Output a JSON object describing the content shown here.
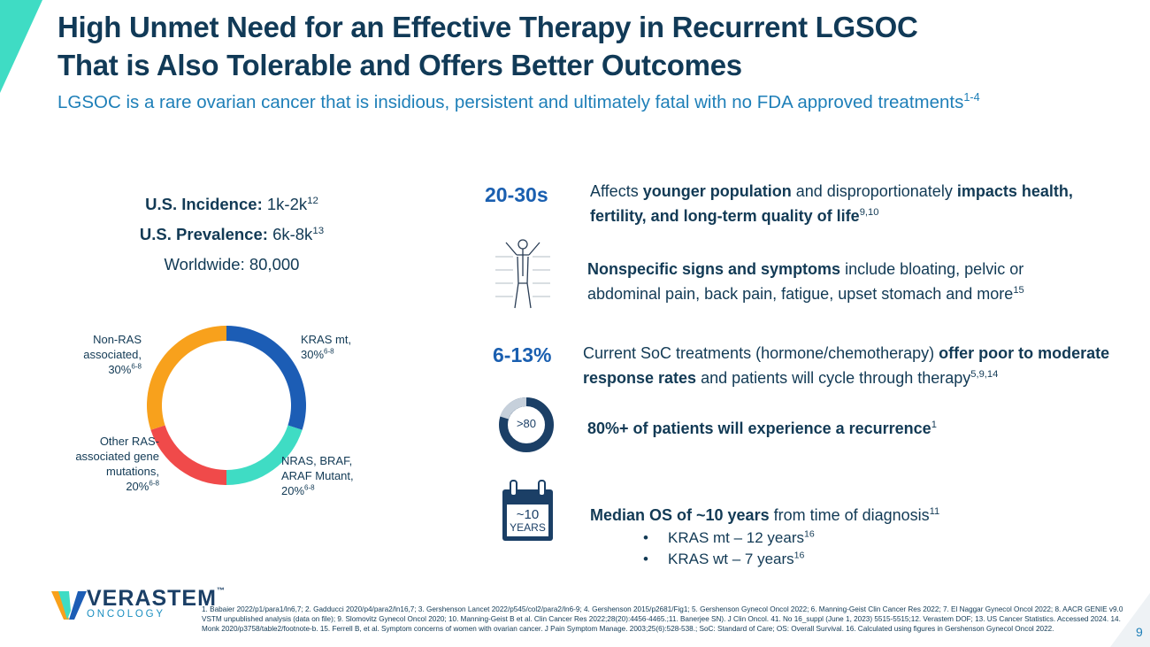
{
  "header": {
    "title_line1": "High Unmet Need for an Effective Therapy in Recurrent LGSOC",
    "title_line2": "That is Also Tolerable and Offers Better Outcomes",
    "subtitle": "LGSOC is a rare ovarian cancer that is insidious, persistent and ultimately fatal with no FDA approved treatments",
    "subtitle_ref": "1-4"
  },
  "stats": {
    "incidence": {
      "label": "U.S. Incidence:",
      "value": "1k-2k",
      "ref": "12"
    },
    "prevalence": {
      "label": "U.S. Prevalence:",
      "value": "6k-8k",
      "ref": "13"
    },
    "worldwide": {
      "label": "Worldwide:",
      "value": "80,000"
    }
  },
  "chart_data": {
    "type": "donut",
    "categories": [
      "KRAS mt,",
      "NRAS, BRAF, ARAF Mutant,",
      "Other RAS-associated gene mutations,",
      "Non-RAS associated,"
    ],
    "values": [
      30,
      20,
      20,
      30
    ],
    "value_labels": [
      "30%",
      "20%",
      "20%",
      "30%"
    ],
    "label_refs": [
      "6-8",
      "6-8",
      "6-8",
      "6-8"
    ],
    "colors": [
      "#1c5db5",
      "#3fdcc4",
      "#f04a4a",
      "#f8a11c"
    ]
  },
  "facts": [
    {
      "stat": "20-30s",
      "parts": [
        {
          "text": "Affects "
        },
        {
          "text": "younger population",
          "bold": true
        },
        {
          "text": " and disproportionately "
        },
        {
          "text": "impacts health, fertility, and long-term quality of life",
          "bold": true
        }
      ],
      "ref": "9,10"
    },
    {
      "parts": [
        {
          "text": "Nonspecific signs and symptoms",
          "bold": true
        },
        {
          "text": " include bloating, pelvic or abdominal pain, back pain, fatigue, upset stomach and more"
        }
      ],
      "ref": "15"
    },
    {
      "stat": "6-13%",
      "parts": [
        {
          "text": "Current SoC treatments (hormone/chemotherapy) "
        },
        {
          "text": "offer poor to moderate response rates",
          "bold": true
        },
        {
          "text": " and patients will cycle through therapy"
        }
      ],
      "ref": "5,9,14"
    },
    {
      "icon_label": ">80",
      "parts": [
        {
          "text": "80%+ of patients will experience a recurrence",
          "bold": true
        }
      ],
      "ref": "1"
    },
    {
      "icon_label": "~10",
      "icon_sub": "YEARS",
      "parts": [
        {
          "text": "Median OS of ~10 years",
          "bold": true
        },
        {
          "text": " from time of diagnosis"
        }
      ],
      "ref": "11",
      "bullets": [
        {
          "text": "KRAS mt – 12 years",
          "ref": "16"
        },
        {
          "text": "KRAS wt – 7 years",
          "ref": "16"
        }
      ]
    }
  ],
  "footer": {
    "logo_name": "VERASTEM",
    "logo_tm": "™",
    "logo_sub": "ONCOLOGY",
    "references": "1. Babaier 2022/p1/para1/ln6,7; 2. Gadducci 2020/p4/para2/ln16,7; 3. Gershenson Lancet 2022/p545/col2/para2/ln6-9; 4. Gershenson 2015/p2681/Fig1; 5. Gershenson Gynecol Oncol 2022; 6. Manning-Geist Clin Cancer Res 2022; 7. El Naggar Gynecol Oncol 2022; 8. AACR GENIE v9.0 VSTM unpublished analysis (data on file); 9. Slomovitz Gynecol Oncol 2020; 10. Manning-Geist B et al. Clin Cancer Res 2022;28(20):4456-4465.;11. Banerjee SN). J Clin Oncol. 41. No 16_suppl (June 1, 2023) 5515-5515;12. Verastem DOF; 13. US Cancer Statistics. Accessed 2024. 14. Monk 2020/p3758/table2/footnote-b. 15. Ferrell B, et al. Symptom concerns of women with ovarian cancer. J Pain Symptom Manage. 2003;25(6):528-538.; SoC: Standard of Care; OS: Overall Survival. 16. Calculated using figures in Gershenson Gynecol Oncol 2022.",
    "page_number": "9"
  }
}
